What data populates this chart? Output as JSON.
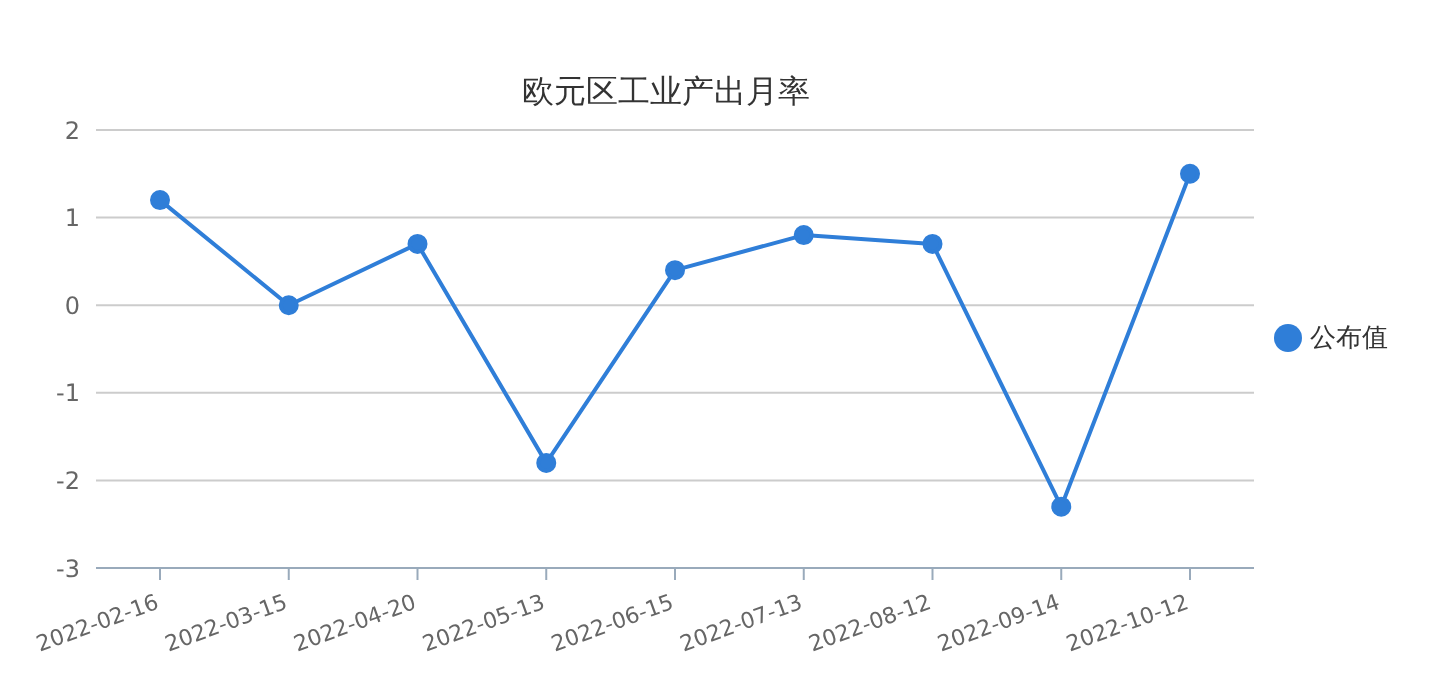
{
  "chart_data": {
    "type": "line",
    "title": "欧元区工业产出月率",
    "categories": [
      "2022-02-16",
      "2022-03-15",
      "2022-04-20",
      "2022-05-13",
      "2022-06-15",
      "2022-07-13",
      "2022-08-12",
      "2022-09-14",
      "2022-10-12"
    ],
    "series": [
      {
        "name": "公布值",
        "color": "#2f7ed8",
        "values": [
          1.2,
          0,
          0.7,
          -1.8,
          0.4,
          0.8,
          0.7,
          -2.3,
          1.5
        ]
      }
    ],
    "ylim": [
      -3,
      2
    ],
    "yticks": [
      -3,
      -2,
      -1,
      0,
      1,
      2
    ],
    "grid": "y",
    "legend": "right",
    "marker": "circle",
    "line_style": "solid"
  }
}
